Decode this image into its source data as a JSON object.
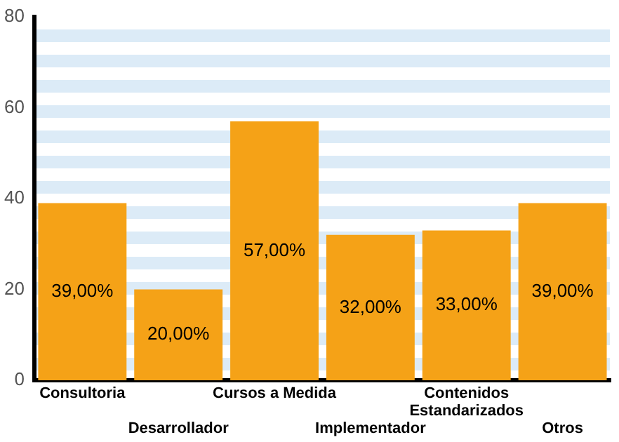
{
  "chart_data": {
    "type": "bar",
    "categories": [
      "Consultoria",
      "Desarrollador",
      "Cursos a Medida",
      "Implementador",
      "Contenidos Estandarizados",
      "Otros"
    ],
    "values": [
      39,
      20,
      57,
      32,
      33,
      39
    ],
    "color": "#f5a217",
    "value_labels": [
      "39,00%",
      "20,00%",
      "57,00%",
      "32,00%",
      "33,00%",
      "39,00%"
    ],
    "ylim": [
      0,
      80
    ],
    "yticks": [
      0,
      20,
      40,
      60,
      80
    ],
    "grid": false,
    "legend": false
  }
}
